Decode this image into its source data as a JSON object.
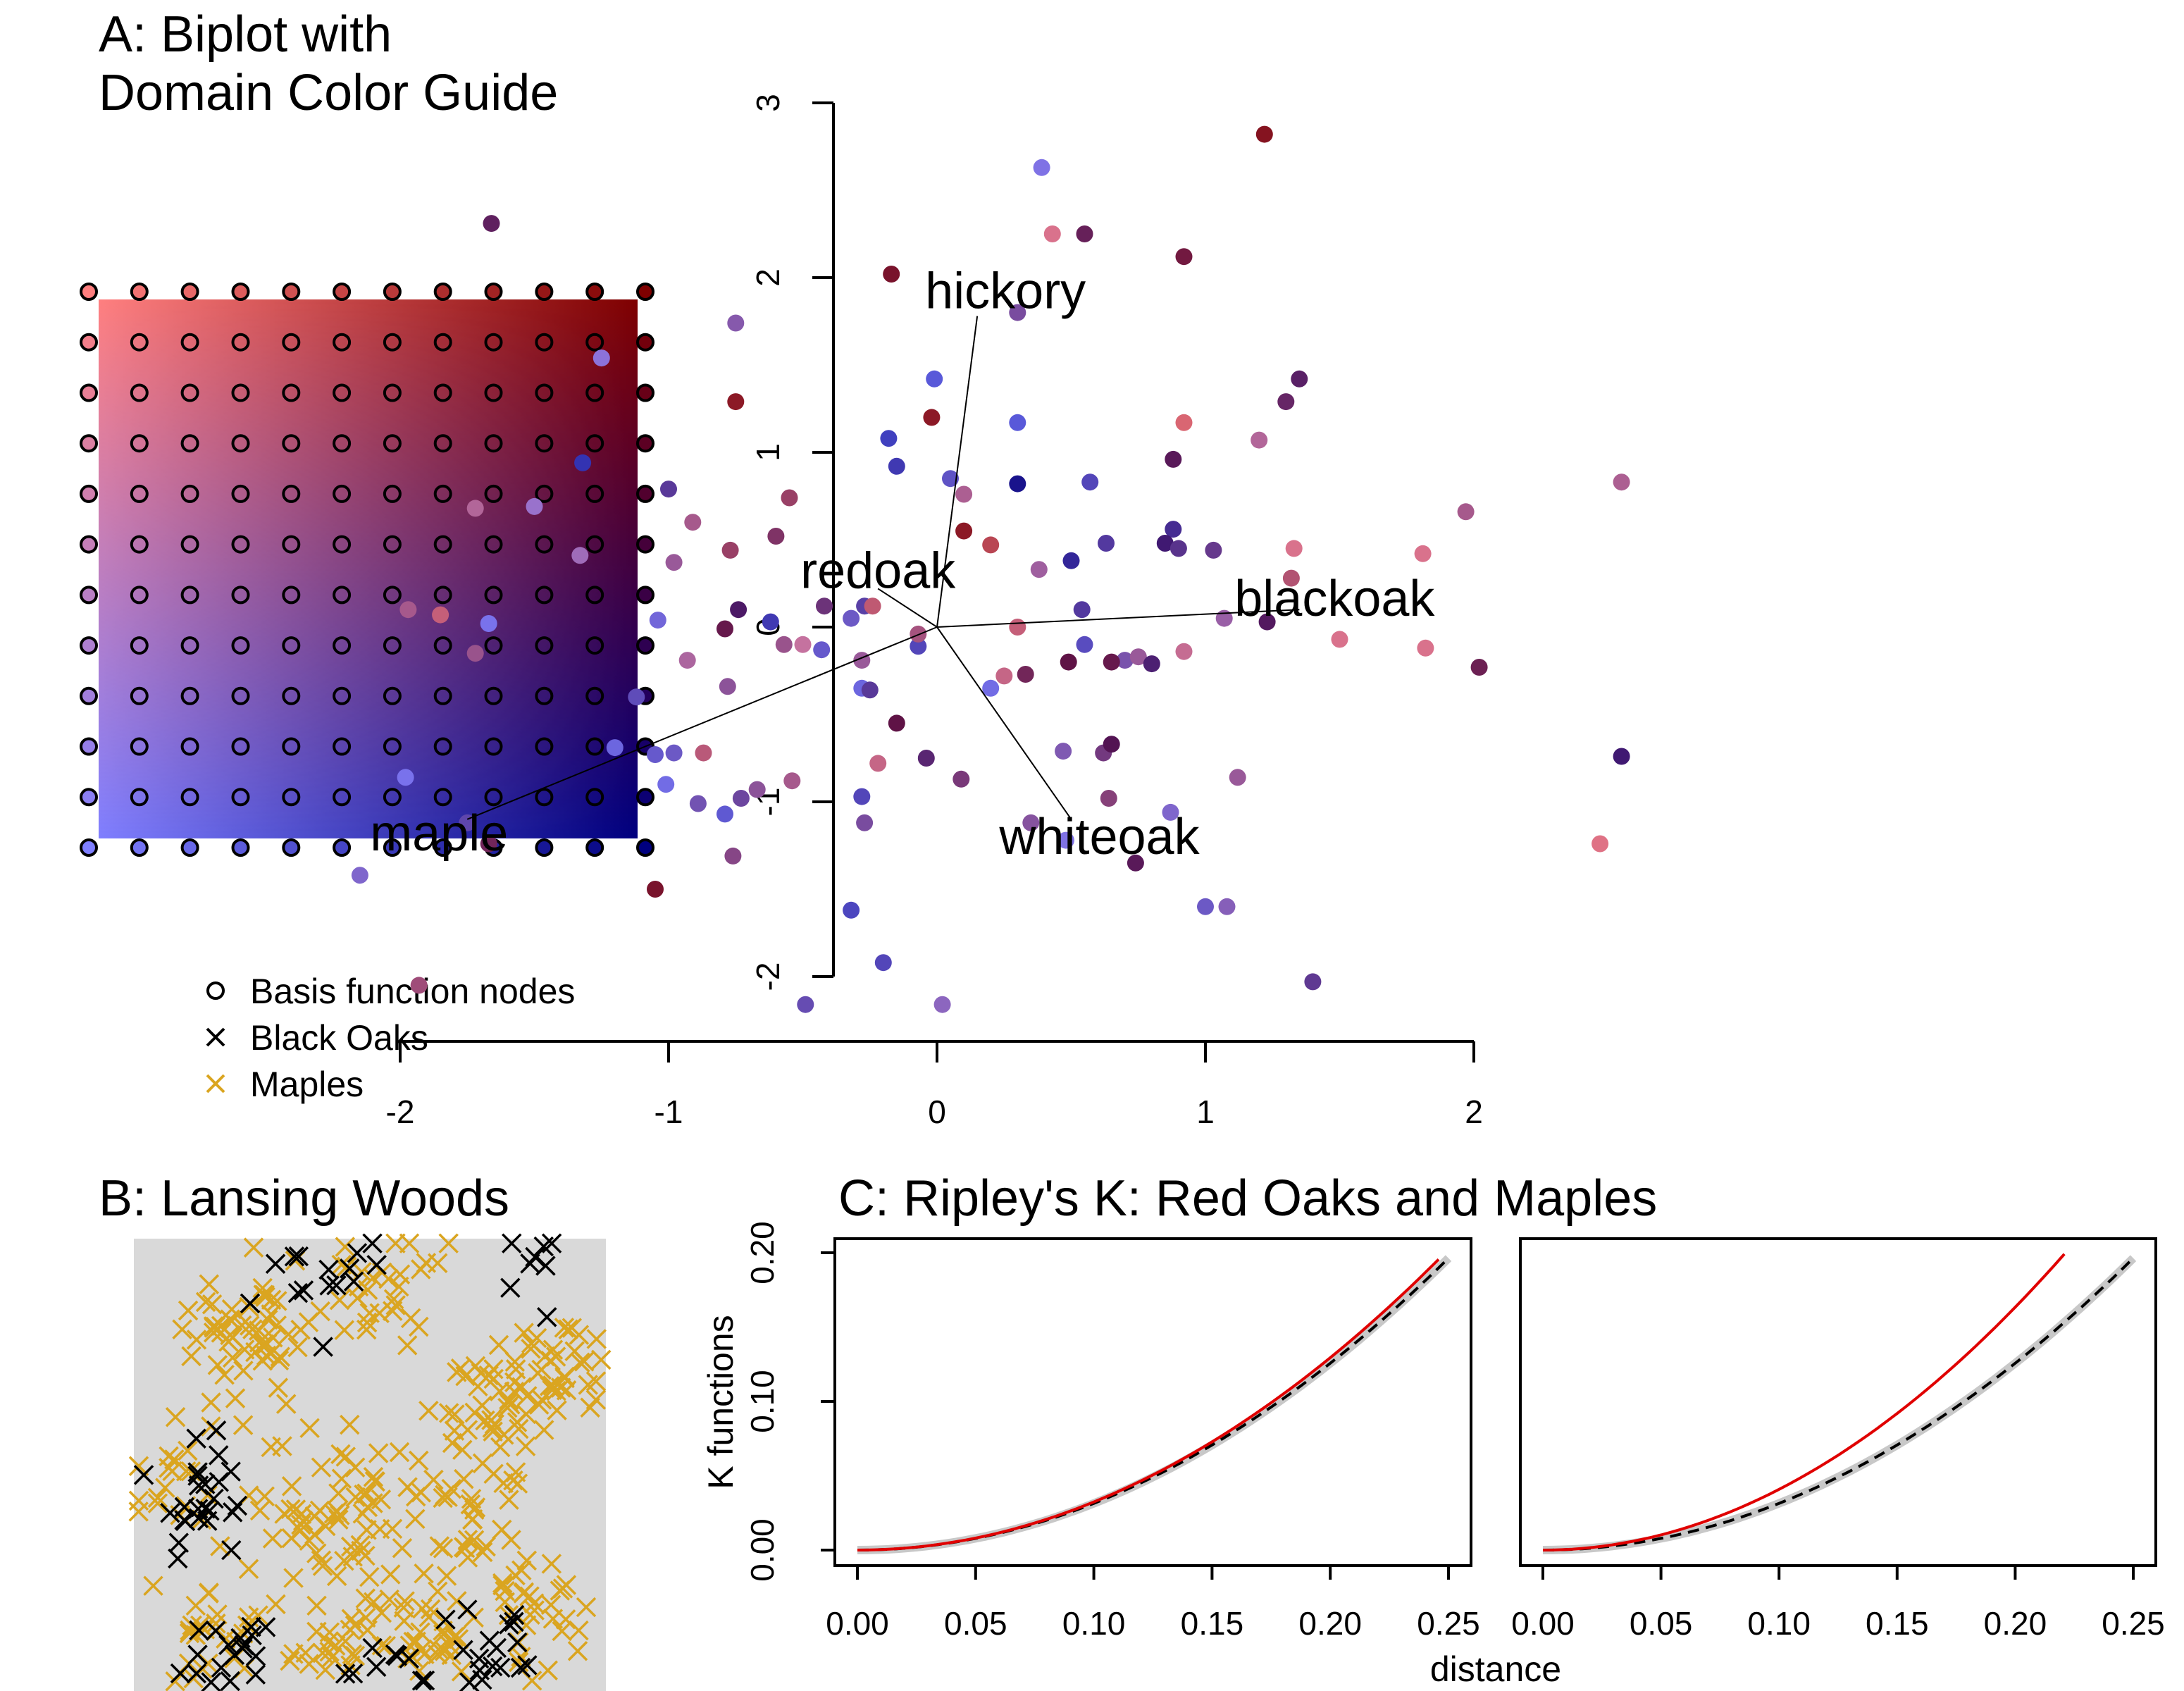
{
  "panels": {
    "a_title_line1": "A: Biplot with",
    "a_title_line2": "Domain Color Guide",
    "b_title": "B: Lansing Woods",
    "c_title": "C: Ripley's K: Red Oaks and Maples"
  },
  "legend": {
    "items": [
      {
        "label": "Basis function nodes",
        "symbol": "circle",
        "color": "#000000"
      },
      {
        "label": "Black Oaks",
        "symbol": "cross",
        "color": "#000000"
      },
      {
        "label": "Maples",
        "symbol": "cross",
        "color": "#DAA520"
      }
    ]
  },
  "colors": {
    "guide_corner_top_left": "#FF7F7F",
    "guide_corner_top_right": "#7F0000",
    "guide_corner_bottom_left": "#7F7FFF",
    "guide_corner_bottom_right": "#00007F",
    "black_oak": "#000000",
    "maple": "#DAA520",
    "woods_background": "#D9D9D9",
    "k_observed": "#E00000",
    "k_theoretical": "#000000",
    "k_envelope": "#C8C8C8"
  },
  "chart_data": [
    {
      "type": "scatter",
      "panel": "A-guide",
      "grid_nodes": {
        "columns": 12,
        "rows": 12
      },
      "legend": [
        "Basis function nodes"
      ]
    },
    {
      "type": "scatter",
      "panel": "A-biplot",
      "xlim": [
        -2.2,
        2.6
      ],
      "ylim": [
        -2.1,
        3.0
      ],
      "x_ticks": [
        -2,
        -1,
        0,
        1,
        2
      ],
      "y_ticks": [
        -2,
        -1,
        0,
        1,
        2,
        3
      ],
      "arrows": [
        {
          "label": "hickory",
          "x": 0.15,
          "y": 1.78
        },
        {
          "label": "redoak",
          "x": -0.22,
          "y": 0.22
        },
        {
          "label": "blackoak",
          "x": 1.35,
          "y": 0.1
        },
        {
          "label": "whiteoak",
          "x": 0.5,
          "y": -1.1
        },
        {
          "label": "maple",
          "x": -1.75,
          "y": -1.1
        }
      ],
      "points": [
        [
          0.39,
          2.63,
          0.1,
          0.1
        ],
        [
          0.43,
          2.25,
          0.1,
          0.8
        ],
        [
          0.55,
          2.25,
          0.75,
          0.55
        ],
        [
          1.22,
          2.82,
          0.85,
          0.9
        ],
        [
          -1.66,
          2.31,
          0.75,
          0.5
        ],
        [
          -1.25,
          1.54,
          0.1,
          0.2
        ],
        [
          -0.75,
          1.74,
          0.3,
          0.35
        ],
        [
          -0.75,
          1.29,
          0.8,
          0.9
        ],
        [
          -0.17,
          2.02,
          0.85,
          0.8
        ],
        [
          0.3,
          1.8,
          0.4,
          0.35
        ],
        [
          0.92,
          2.12,
          0.8,
          0.7
        ],
        [
          -0.01,
          1.42,
          0.3,
          0.0
        ],
        [
          -0.02,
          1.2,
          0.8,
          0.9
        ],
        [
          0.3,
          1.17,
          0.3,
          0.0
        ],
        [
          0.92,
          1.17,
          0.2,
          0.9
        ],
        [
          1.2,
          1.07,
          0.2,
          0.6
        ],
        [
          1.35,
          1.42,
          0.75,
          0.45
        ],
        [
          1.3,
          1.29,
          0.7,
          0.5
        ],
        [
          -1.32,
          0.94,
          0.6,
          0.0
        ],
        [
          -1.0,
          0.79,
          0.55,
          0.25
        ],
        [
          -0.18,
          1.08,
          0.5,
          0.0
        ],
        [
          -0.15,
          0.92,
          0.55,
          0.05
        ],
        [
          0.05,
          0.85,
          0.35,
          0.1
        ],
        [
          0.1,
          0.76,
          0.25,
          0.6
        ],
        [
          0.3,
          0.82,
          0.85,
          0.05
        ],
        [
          0.57,
          0.83,
          0.45,
          0.1
        ],
        [
          0.88,
          0.96,
          0.8,
          0.5
        ],
        [
          -1.72,
          0.68,
          0.2,
          0.6
        ],
        [
          -1.5,
          0.69,
          0.1,
          0.3
        ],
        [
          -0.91,
          0.6,
          0.3,
          0.6
        ],
        [
          -0.55,
          0.74,
          0.5,
          0.7
        ],
        [
          -0.6,
          0.52,
          0.6,
          0.6
        ],
        [
          -0.77,
          0.44,
          0.5,
          0.7
        ],
        [
          -1.33,
          0.41,
          0.15,
          0.4
        ],
        [
          -0.98,
          0.37,
          0.3,
          0.5
        ],
        [
          0.2,
          0.47,
          0.45,
          0.9
        ],
        [
          0.38,
          0.33,
          0.25,
          0.5
        ],
        [
          0.5,
          0.38,
          0.7,
          0.1
        ],
        [
          0.63,
          0.48,
          0.55,
          0.2
        ],
        [
          0.88,
          0.56,
          0.65,
          0.2
        ],
        [
          0.85,
          0.48,
          0.8,
          0.3
        ],
        [
          0.9,
          0.45,
          0.6,
          0.3
        ],
        [
          1.03,
          0.44,
          0.55,
          0.35
        ],
        [
          1.33,
          0.45,
          0.1,
          0.8
        ],
        [
          1.81,
          0.42,
          0.1,
          0.8
        ],
        [
          1.97,
          0.66,
          0.3,
          0.6
        ],
        [
          2.55,
          0.83,
          0.25,
          0.6
        ],
        [
          -1.97,
          0.1,
          0.3,
          0.6
        ],
        [
          -1.85,
          0.07,
          0.25,
          0.8
        ],
        [
          -1.67,
          0.02,
          0.1,
          0.05
        ],
        [
          -1.72,
          -0.15,
          0.35,
          0.55
        ],
        [
          -1.04,
          0.04,
          0.2,
          0.1
        ],
        [
          -0.74,
          0.1,
          0.8,
          0.4
        ],
        [
          -0.79,
          -0.01,
          0.8,
          0.6
        ],
        [
          -0.62,
          0.03,
          0.55,
          0.05
        ],
        [
          -0.42,
          0.12,
          0.6,
          0.45
        ],
        [
          -0.32,
          0.05,
          0.3,
          0.15
        ],
        [
          -0.27,
          0.12,
          0.5,
          0.2
        ],
        [
          -0.24,
          0.12,
          0.3,
          0.8
        ],
        [
          0.3,
          0.0,
          0.25,
          0.8
        ],
        [
          0.54,
          0.1,
          0.55,
          0.2
        ],
        [
          0.55,
          -0.1,
          0.4,
          0.1
        ],
        [
          0.7,
          -0.19,
          0.35,
          0.3
        ],
        [
          0.92,
          -0.14,
          0.15,
          0.7
        ],
        [
          1.07,
          0.05,
          0.25,
          0.45
        ],
        [
          1.32,
          0.28,
          0.35,
          0.75
        ],
        [
          1.23,
          0.03,
          0.8,
          0.45
        ],
        [
          1.5,
          -0.07,
          0.1,
          0.8
        ],
        [
          1.82,
          -0.12,
          0.1,
          0.8
        ],
        [
          2.02,
          -0.23,
          0.75,
          0.6
        ],
        [
          -1.12,
          -0.4,
          0.4,
          0.15
        ],
        [
          -1.2,
          -0.69,
          0.2,
          0.05
        ],
        [
          -1.05,
          -0.73,
          0.3,
          0.1
        ],
        [
          -0.93,
          -0.19,
          0.2,
          0.55
        ],
        [
          -0.78,
          -0.34,
          0.35,
          0.45
        ],
        [
          -0.57,
          -0.1,
          0.35,
          0.55
        ],
        [
          -0.5,
          -0.1,
          0.1,
          0.65
        ],
        [
          -0.43,
          -0.13,
          0.3,
          0.1
        ],
        [
          -0.28,
          -0.19,
          0.3,
          0.5
        ],
        [
          -0.28,
          -0.35,
          0.2,
          0.05
        ],
        [
          -0.25,
          -0.36,
          0.55,
          0.25
        ],
        [
          -0.07,
          -0.11,
          0.45,
          0.1
        ],
        [
          -0.07,
          -0.04,
          0.35,
          0.65
        ],
        [
          0.2,
          -0.35,
          0.15,
          0.05
        ],
        [
          0.25,
          -0.28,
          0.2,
          0.75
        ],
        [
          0.33,
          -0.27,
          0.7,
          0.6
        ],
        [
          0.49,
          -0.2,
          0.85,
          0.6
        ],
        [
          0.65,
          -0.2,
          0.8,
          0.6
        ],
        [
          0.75,
          -0.17,
          0.3,
          0.5
        ],
        [
          0.8,
          -0.21,
          0.75,
          0.35
        ],
        [
          -1.01,
          -0.9,
          0.15,
          0.05
        ],
        [
          -0.98,
          -0.72,
          0.3,
          0.15
        ],
        [
          -0.87,
          -0.72,
          0.3,
          0.75
        ],
        [
          -0.89,
          -1.01,
          0.35,
          0.25
        ],
        [
          -0.79,
          -1.07,
          0.3,
          0.05
        ],
        [
          -0.73,
          -0.98,
          0.45,
          0.3
        ],
        [
          -0.67,
          -0.93,
          0.35,
          0.45
        ],
        [
          -0.54,
          -0.88,
          0.3,
          0.6
        ],
        [
          -0.28,
          -0.97,
          0.45,
          0.1
        ],
        [
          -0.27,
          -1.12,
          0.4,
          0.35
        ],
        [
          -0.22,
          -0.78,
          0.2,
          0.75
        ],
        [
          -0.04,
          -0.75,
          0.7,
          0.4
        ],
        [
          0.09,
          -0.87,
          0.55,
          0.5
        ],
        [
          0.47,
          -0.71,
          0.3,
          0.3
        ],
        [
          0.62,
          -0.72,
          0.55,
          0.45
        ],
        [
          0.64,
          -0.98,
          0.5,
          0.55
        ],
        [
          0.87,
          -1.06,
          0.2,
          0.2
        ],
        [
          1.12,
          -0.86,
          0.3,
          0.5
        ],
        [
          -0.15,
          -0.55,
          0.85,
          0.6
        ],
        [
          0.65,
          -0.67,
          0.85,
          0.5
        ],
        [
          -2.15,
          -1.42,
          0.2,
          0.2
        ],
        [
          -1.98,
          -0.86,
          0.1,
          0.05
        ],
        [
          -1.75,
          -1.12,
          0.45,
          0.2
        ],
        [
          -1.67,
          -1.24,
          0.7,
          0.6
        ],
        [
          -0.76,
          -1.31,
          0.45,
          0.5
        ],
        [
          -1.05,
          -1.5,
          0.85,
          0.8
        ],
        [
          -0.32,
          -1.62,
          0.45,
          0.05
        ],
        [
          0.48,
          -1.22,
          0.1,
          0.1
        ],
        [
          0.74,
          -1.35,
          0.8,
          0.5
        ],
        [
          1.0,
          -1.6,
          0.3,
          0.15
        ],
        [
          1.08,
          -1.6,
          0.25,
          0.3
        ],
        [
          1.4,
          -2.03,
          0.55,
          0.3
        ],
        [
          -1.93,
          -2.05,
          0.4,
          0.65
        ],
        [
          -0.2,
          -1.92,
          0.45,
          0.1
        ],
        [
          -0.49,
          -2.16,
          0.4,
          0.2
        ],
        [
          0.02,
          -2.16,
          0.2,
          0.3
        ],
        [
          2.47,
          -1.24,
          0.1,
          0.85
        ],
        [
          2.55,
          -0.74,
          0.8,
          0.3
        ],
        [
          0.35,
          -1.12,
          0.35,
          0.4
        ],
        [
          0.1,
          0.55,
          0.8,
          0.9
        ]
      ]
    },
    {
      "type": "scatter",
      "panel": "B",
      "legend": [
        "Black Oaks",
        "Maples"
      ],
      "clusters": {
        "maples": [
          [
            0.6,
            0.85,
            0.12,
            45
          ],
          [
            0.75,
            0.35,
            0.1,
            40
          ],
          [
            0.25,
            0.2,
            0.12,
            60
          ],
          [
            0.85,
            0.8,
            0.1,
            30
          ],
          [
            0.4,
            0.55,
            0.15,
            60
          ],
          [
            0.9,
            0.3,
            0.1,
            35
          ],
          [
            0.15,
            0.85,
            0.1,
            30
          ],
          [
            0.55,
            0.1,
            0.1,
            30
          ],
          [
            0.7,
            0.6,
            0.12,
            40
          ],
          [
            0.4,
            0.9,
            0.1,
            25
          ],
          [
            0.1,
            0.5,
            0.1,
            20
          ]
        ],
        "black_oaks": [
          [
            0.2,
            0.9,
            0.1,
            25
          ],
          [
            0.75,
            0.93,
            0.1,
            25
          ],
          [
            0.12,
            0.55,
            0.1,
            25
          ],
          [
            0.4,
            0.1,
            0.12,
            15
          ],
          [
            0.55,
            0.92,
            0.12,
            12
          ],
          [
            0.85,
            0.07,
            0.1,
            8
          ]
        ]
      }
    },
    {
      "type": "line",
      "panel": "C",
      "title": "C: Ripley's K: Red Oaks and Maples",
      "xlabel": "distance",
      "ylabel": "K functions",
      "xlim": [
        0,
        0.25
      ],
      "ylim": [
        0,
        0.2
      ],
      "x_ticks": [
        "0.00",
        "0.05",
        "0.10",
        "0.15",
        "0.20",
        "0.25"
      ],
      "y_ticks": [
        "0.00",
        "0.10",
        "0.20"
      ],
      "subplots": [
        {
          "name": "Red Oaks",
          "observed_factor": 1.03,
          "theoretical": "pi*r^2"
        },
        {
          "name": "Maples",
          "observed_factor": 1.3,
          "theoretical": "pi*r^2"
        }
      ]
    }
  ]
}
